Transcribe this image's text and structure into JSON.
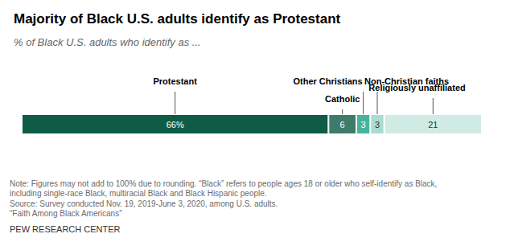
{
  "chart_data": {
    "type": "bar",
    "title": "Majority of Black U.S. adults identify as Protestant",
    "subtitle": "% of Black U.S. adults who identify as ...",
    "orientation": "horizontal",
    "stacked": true,
    "data_labels": true,
    "tick_labels": false,
    "grid": false,
    "categories": [
      null
    ],
    "xlim": [
      0,
      99
    ],
    "series": [
      {
        "name": "Protestant",
        "color": "#0f5c46",
        "values": [
          66
        ],
        "value_labels": [
          "66%"
        ]
      },
      {
        "name": "Catholic",
        "color": "#3f7b6b",
        "values": [
          6
        ]
      },
      {
        "name": "Other Christians",
        "color": "#46b49c",
        "values": [
          3
        ]
      },
      {
        "name": "Non-Christian faiths",
        "color": "#a9dccf",
        "values": [
          3
        ]
      },
      {
        "name": "Religiously unaffiliated",
        "color": "#d0ebe4",
        "values": [
          21
        ]
      }
    ],
    "note": [
      "Note: Figures may not add to 100% due to rounding. “Black” refers to people ages 18 or older who self-identify as Black,",
      "including single-race Black, multiracial Black and Black Hispanic people."
    ],
    "source": [
      "Source: Survey conducted Nov. 19, 2019-June 3, 2020, among U.S. adults.",
      "“Faith Among Black Americans”"
    ],
    "credit": "PEW RESEARCH CENTER"
  }
}
